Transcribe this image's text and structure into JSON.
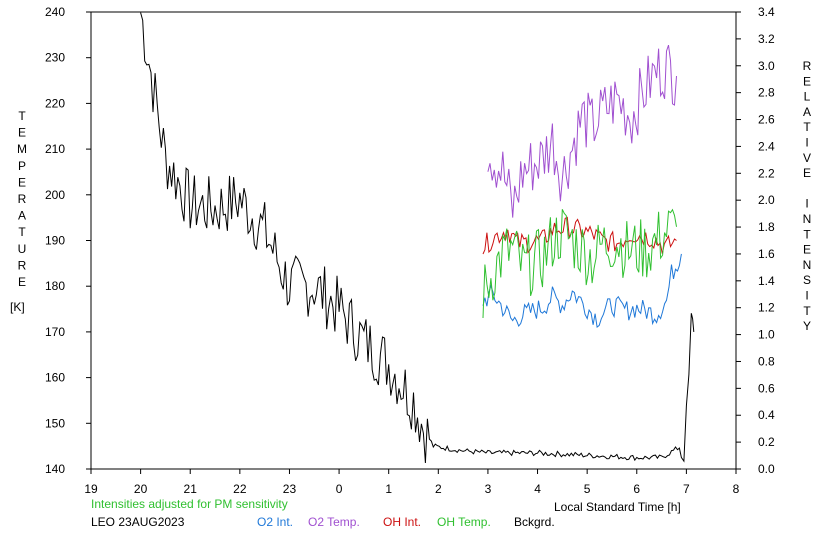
{
  "chart_data": {
    "type": "line",
    "left_axis": {
      "label_letters": [
        "T",
        "E",
        "M",
        "P",
        "E",
        "R",
        "A",
        "T",
        "U",
        "R",
        "E"
      ],
      "unit": "[K]",
      "ylim": [
        140,
        240
      ],
      "ticks": [
        "140",
        "150",
        "160",
        "170",
        "180",
        "190",
        "200",
        "210",
        "220",
        "230",
        "240"
      ]
    },
    "right_axis": {
      "label_letters": [
        "R",
        "E",
        "L",
        "A",
        "T",
        "I",
        "V",
        "E",
        "",
        "I",
        "N",
        "T",
        "E",
        "N",
        "S",
        "I",
        "T",
        "Y"
      ],
      "ylim": [
        0.0,
        3.4
      ],
      "ticks": [
        "0.0",
        "0.2",
        "0.4",
        "0.6",
        "0.8",
        "1.0",
        "1.2",
        "1.4",
        "1.6",
        "1.8",
        "2.0",
        "2.2",
        "2.4",
        "2.6",
        "2.8",
        "3.0",
        "3.2",
        "3.4"
      ]
    },
    "x_axis": {
      "label": "Local Standard Time [h]",
      "ticks": [
        "19",
        "20",
        "21",
        "22",
        "23",
        "0",
        "1",
        "2",
        "3",
        "4",
        "5",
        "6",
        "7",
        "8"
      ],
      "xlim": [
        19,
        32
      ]
    },
    "note": "Intensities adjusted for PM sensitivity",
    "station": "LEO 23AUG2023",
    "legend": [
      {
        "label": "O2 Int.",
        "color": "#1f78d8"
      },
      {
        "label": "O2 Temp.",
        "color": "#a050d0"
      },
      {
        "label": "OH Int.",
        "color": "#cc1010"
      },
      {
        "label": "OH Temp.",
        "color": "#30c030"
      },
      {
        "label": "Bckgrd.",
        "color": "#000000"
      }
    ],
    "series": [
      {
        "name": "Bckgrd.",
        "axis": "left",
        "color": "#000000",
        "x": [
          20.0,
          20.5,
          21.0,
          21.5,
          22.0,
          22.5,
          23.0,
          23.5,
          24.0,
          24.5,
          25.0,
          25.5,
          25.7,
          25.9,
          26.5,
          27.0,
          28.0,
          29.0,
          30.0,
          30.5,
          30.9,
          31.0,
          31.1,
          31.15
        ],
        "y": [
          240,
          208,
          198,
          197,
          199,
          192,
          180,
          180,
          175,
          168,
          163,
          155,
          149,
          145,
          144,
          143.5,
          143.5,
          143,
          142.5,
          142.5,
          145,
          148,
          170,
          170
        ]
      },
      {
        "name": "O2 Int.",
        "axis": "right",
        "color": "#1f78d8",
        "x": [
          26.9,
          27.1,
          27.3,
          27.5,
          27.7,
          28.1,
          28.3,
          28.5,
          28.7,
          29.0,
          29.2,
          29.5,
          29.8,
          30.0,
          30.4,
          30.6,
          30.7,
          30.9
        ],
        "y": [
          1.25,
          1.3,
          1.2,
          1.1,
          1.15,
          1.2,
          1.28,
          1.22,
          1.32,
          1.2,
          1.12,
          1.22,
          1.18,
          1.2,
          1.15,
          1.25,
          1.45,
          1.6
        ]
      },
      {
        "name": "O2 Temp.",
        "axis": "left",
        "color": "#a050d0",
        "x": [
          27.0,
          27.3,
          27.5,
          27.7,
          28.1,
          28.3,
          28.5,
          28.9,
          29.1,
          29.4,
          29.6,
          29.9,
          30.1,
          30.4,
          30.6,
          30.8
        ],
        "y": [
          210,
          205,
          197,
          205,
          208,
          212,
          204,
          217,
          215,
          219,
          221,
          217,
          222,
          227,
          228,
          226
        ]
      },
      {
        "name": "OH Int.",
        "axis": "right",
        "color": "#cc1010",
        "x": [
          26.9,
          27.1,
          27.4,
          27.6,
          28.1,
          28.3,
          28.6,
          29.1,
          29.3,
          29.6,
          29.9,
          30.3,
          30.6,
          30.8
        ],
        "y": [
          1.65,
          1.72,
          1.78,
          1.68,
          1.7,
          1.78,
          1.8,
          1.75,
          1.7,
          1.68,
          1.75,
          1.72,
          1.65,
          1.7
        ]
      },
      {
        "name": "OH Temp.",
        "axis": "left",
        "color": "#30c030",
        "x": [
          26.9,
          27.1,
          27.3,
          27.5,
          27.7,
          28.1,
          28.3,
          28.5,
          28.9,
          29.1,
          29.3,
          29.6,
          29.8,
          30.2,
          30.4,
          30.6,
          30.8
        ],
        "y": [
          178,
          183,
          187,
          188,
          184,
          186,
          190,
          192,
          188,
          186,
          189,
          190,
          188,
          188,
          190,
          192,
          193
        ]
      }
    ]
  }
}
